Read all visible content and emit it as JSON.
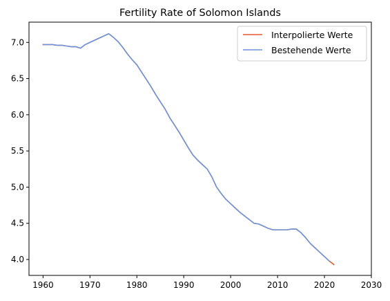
{
  "chart_data": {
    "type": "line",
    "title": "Fertility Rate of Solomon Islands",
    "xlabel": "",
    "ylabel": "",
    "xlim": [
      1957,
      2030
    ],
    "ylim": [
      3.78,
      7.28
    ],
    "xticks": [
      1960,
      1970,
      1980,
      1990,
      2000,
      2010,
      2020,
      2030
    ],
    "yticks": [
      4.0,
      4.5,
      5.0,
      5.5,
      6.0,
      6.5,
      7.0
    ],
    "ytick_labels": [
      "4.0",
      "4.5",
      "5.0",
      "5.5",
      "6.0",
      "6.5",
      "7.0"
    ],
    "grid": false,
    "legend_position": "top-right",
    "series": [
      {
        "name": "Interpolierte Werte",
        "color": "#e8562a",
        "x": [
          1960,
          1961,
          1962,
          1963,
          1964,
          1965,
          1966,
          1967,
          1968,
          1969,
          1970,
          1971,
          1972,
          1973,
          1974,
          1975,
          1976,
          1977,
          1978,
          1979,
          1980,
          1981,
          1982,
          1983,
          1984,
          1985,
          1986,
          1987,
          1988,
          1989,
          1990,
          1991,
          1992,
          1993,
          1994,
          1995,
          1996,
          1997,
          1998,
          1999,
          2000,
          2001,
          2002,
          2003,
          2004,
          2005,
          2006,
          2007,
          2008,
          2009,
          2010,
          2011,
          2012,
          2013,
          2014,
          2015,
          2016,
          2017,
          2018,
          2019,
          2020,
          2021,
          2022
        ],
        "values": [
          6.97,
          6.97,
          6.97,
          6.96,
          6.96,
          6.95,
          6.94,
          6.94,
          6.92,
          6.97,
          7.0,
          7.03,
          7.06,
          7.09,
          7.12,
          7.07,
          7.01,
          6.93,
          6.84,
          6.76,
          6.69,
          6.59,
          6.49,
          6.39,
          6.28,
          6.18,
          6.08,
          5.96,
          5.86,
          5.76,
          5.65,
          5.54,
          5.44,
          5.37,
          5.31,
          5.25,
          5.14,
          5.0,
          4.91,
          4.83,
          4.77,
          4.71,
          4.65,
          4.6,
          4.55,
          4.5,
          4.49,
          4.46,
          4.43,
          4.41,
          4.41,
          4.41,
          4.41,
          4.42,
          4.42,
          4.37,
          4.3,
          4.22,
          4.16,
          4.1,
          4.04,
          3.98,
          3.93
        ]
      },
      {
        "name": "Bestehende Werte",
        "color": "#6d95de",
        "x": [
          1960,
          1961,
          1962,
          1963,
          1964,
          1965,
          1966,
          1967,
          1968,
          1969,
          1970,
          1971,
          1972,
          1973,
          1974,
          1975,
          1976,
          1977,
          1978,
          1979,
          1980,
          1981,
          1982,
          1983,
          1984,
          1985,
          1986,
          1987,
          1988,
          1989,
          1990,
          1991,
          1992,
          1993,
          1994,
          1995,
          1996,
          1997,
          1998,
          1999,
          2000,
          2001,
          2002,
          2003,
          2004,
          2005,
          2006,
          2007,
          2008,
          2009,
          2010,
          2011,
          2012,
          2013,
          2014,
          2015,
          2016,
          2017,
          2018,
          2019,
          2020,
          2021
        ],
        "values": [
          6.97,
          6.97,
          6.97,
          6.96,
          6.96,
          6.95,
          6.94,
          6.94,
          6.92,
          6.97,
          7.0,
          7.03,
          7.06,
          7.09,
          7.12,
          7.07,
          7.01,
          6.93,
          6.84,
          6.76,
          6.69,
          6.59,
          6.49,
          6.39,
          6.28,
          6.18,
          6.08,
          5.96,
          5.86,
          5.76,
          5.65,
          5.54,
          5.44,
          5.37,
          5.31,
          5.25,
          5.14,
          5.0,
          4.91,
          4.83,
          4.77,
          4.71,
          4.65,
          4.6,
          4.55,
          4.5,
          4.49,
          4.46,
          4.43,
          4.41,
          4.41,
          4.41,
          4.41,
          4.42,
          4.42,
          4.37,
          4.3,
          4.22,
          4.16,
          4.1,
          4.04,
          3.98
        ]
      }
    ]
  }
}
